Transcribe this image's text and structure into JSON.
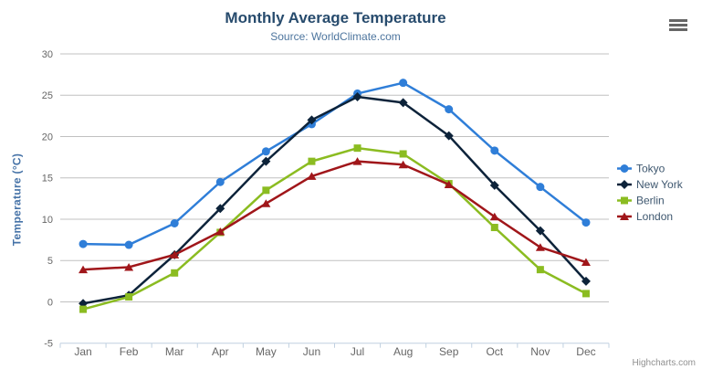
{
  "header": {
    "title": "Monthly Average Temperature",
    "subtitle": "Source: WorldClimate.com"
  },
  "credits_label": "Highcharts.com",
  "context_menu_icon": "hamburger-icon",
  "ui_colors": {
    "title": "#274b6d",
    "subtitle": "#4d759e",
    "axis_labels": "#666666",
    "y_axis_title": "#4572a7",
    "legend_text": "#3e576f",
    "gridline": "#c0c0c0",
    "axis_line": "#c0d0e0",
    "credits": "#909090",
    "background": "#ffffff"
  },
  "chart_data": {
    "type": "line",
    "title": "Monthly Average Temperature",
    "subtitle": "Source: WorldClimate.com",
    "xlabel": "",
    "ylabel": "Temperature (°C)",
    "categories": [
      "Jan",
      "Feb",
      "Mar",
      "Apr",
      "May",
      "Jun",
      "Jul",
      "Aug",
      "Sep",
      "Oct",
      "Nov",
      "Dec"
    ],
    "ylim": [
      -5,
      30
    ],
    "yticks": [
      -5,
      0,
      5,
      10,
      15,
      20,
      25,
      30
    ],
    "grid": true,
    "legend_position": "right",
    "series": [
      {
        "name": "Tokyo",
        "color": "#2f7ed8",
        "marker": "circle",
        "values": [
          7.0,
          6.9,
          9.5,
          14.5,
          18.2,
          21.5,
          25.2,
          26.5,
          23.3,
          18.3,
          13.9,
          9.6
        ]
      },
      {
        "name": "New York",
        "color": "#0d233a",
        "marker": "diamond",
        "values": [
          -0.2,
          0.8,
          5.7,
          11.3,
          17.0,
          22.0,
          24.8,
          24.1,
          20.1,
          14.1,
          8.6,
          2.5
        ]
      },
      {
        "name": "Berlin",
        "color": "#8bbc21",
        "marker": "square",
        "values": [
          -0.9,
          0.6,
          3.5,
          8.4,
          13.5,
          17.0,
          18.6,
          17.9,
          14.3,
          9.0,
          3.9,
          1.0
        ]
      },
      {
        "name": "London",
        "color": "#a0161a",
        "marker": "triangle",
        "values": [
          3.9,
          4.2,
          5.7,
          8.5,
          11.9,
          15.2,
          17.0,
          16.6,
          14.2,
          10.3,
          6.6,
          4.8
        ]
      }
    ]
  }
}
